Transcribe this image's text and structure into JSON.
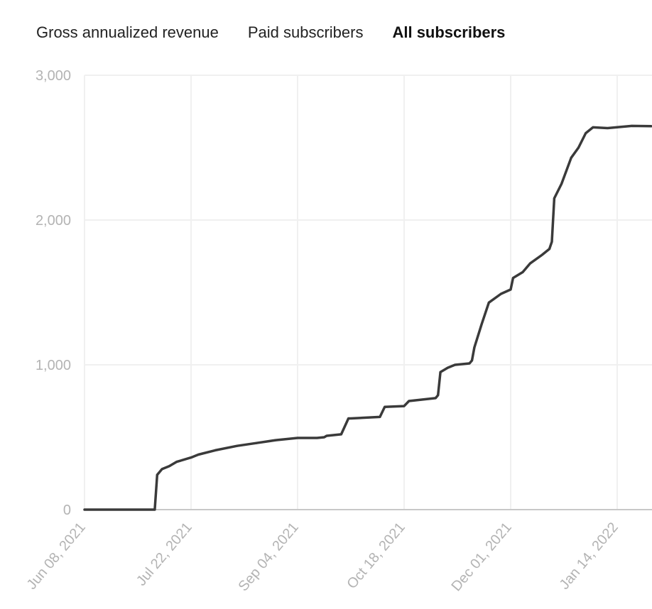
{
  "tabs": [
    {
      "label": "Gross annualized revenue",
      "active": false
    },
    {
      "label": "Paid subscribers",
      "active": false
    },
    {
      "label": "All subscribers",
      "active": true
    }
  ],
  "colors": {
    "line": "#3a3a3a",
    "grid": "#f0f0f0",
    "axis": "#c8c8c8",
    "tick_text": "#b3b3b3"
  },
  "chart_data": {
    "type": "line",
    "title": "",
    "xlabel": "",
    "ylabel": "",
    "ylim": [
      0,
      3000
    ],
    "xlim": [
      "2021-06-08",
      "2022-01-28"
    ],
    "y_ticks": [
      {
        "value": 0,
        "label": "0"
      },
      {
        "value": 1000,
        "label": "1,000"
      },
      {
        "value": 2000,
        "label": "2,000"
      },
      {
        "value": 3000,
        "label": "3,000"
      }
    ],
    "x_ticks": [
      {
        "value": "2021-06-08",
        "label": "Jun 08, 2021"
      },
      {
        "value": "2021-07-22",
        "label": "Jul 22, 2021"
      },
      {
        "value": "2021-09-04",
        "label": "Sep 04, 2021"
      },
      {
        "value": "2021-10-18",
        "label": "Oct 18, 2021"
      },
      {
        "value": "2021-12-01",
        "label": "Dec 01, 2021"
      },
      {
        "value": "2022-01-14",
        "label": "Jan 14, 2022"
      }
    ],
    "grid": true,
    "series": [
      {
        "x": [
          "2021-06-08",
          "2021-07-07",
          "2021-07-08",
          "2021-07-10",
          "2021-07-13",
          "2021-07-16",
          "2021-07-22",
          "2021-07-25",
          "2021-08-01",
          "2021-08-10",
          "2021-08-18",
          "2021-08-26",
          "2021-09-04",
          "2021-09-12",
          "2021-09-15",
          "2021-09-16",
          "2021-09-22",
          "2021-09-25",
          "2021-09-26",
          "2021-10-08",
          "2021-10-10",
          "2021-10-18",
          "2021-10-20",
          "2021-10-31",
          "2021-11-01",
          "2021-11-02",
          "2021-11-05",
          "2021-11-08",
          "2021-11-14",
          "2021-11-15",
          "2021-11-16",
          "2021-11-19",
          "2021-11-22",
          "2021-11-27",
          "2021-12-01",
          "2021-12-02",
          "2021-12-06",
          "2021-12-09",
          "2021-12-14",
          "2021-12-17",
          "2021-12-18",
          "2021-12-19",
          "2021-12-22",
          "2021-12-26",
          "2021-12-29",
          "2022-01-01",
          "2022-01-04",
          "2022-01-10",
          "2022-01-20",
          "2022-01-28"
        ],
        "y": [
          0,
          0,
          240,
          280,
          300,
          330,
          360,
          380,
          410,
          440,
          460,
          480,
          495,
          495,
          500,
          510,
          520,
          630,
          630,
          640,
          710,
          715,
          750,
          770,
          790,
          950,
          980,
          1000,
          1010,
          1030,
          1120,
          1280,
          1430,
          1490,
          1520,
          1600,
          1640,
          1700,
          1760,
          1800,
          1850,
          2150,
          2250,
          2430,
          2500,
          2600,
          2640,
          2635,
          2650,
          2648
        ]
      }
    ]
  }
}
